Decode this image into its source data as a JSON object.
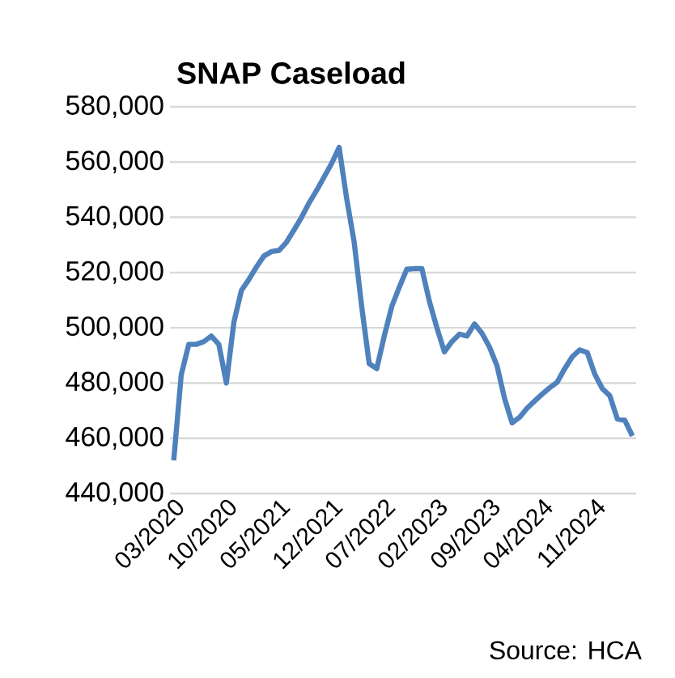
{
  "chart_data": {
    "type": "line",
    "title": "SNAP Caseload",
    "annotations": [
      "Source: HCA"
    ],
    "categories": [
      "03/2020",
      null,
      null,
      null,
      null,
      null,
      null,
      "10/2020",
      null,
      null,
      null,
      null,
      null,
      null,
      "05/2021",
      null,
      null,
      null,
      null,
      null,
      null,
      "12/2021",
      null,
      null,
      null,
      null,
      null,
      null,
      "07/2022",
      null,
      null,
      null,
      null,
      null,
      null,
      "02/2023",
      null,
      null,
      null,
      null,
      null,
      null,
      "09/2023",
      null,
      null,
      null,
      null,
      null,
      null,
      "04/2024",
      null,
      null,
      null,
      null,
      null,
      null,
      "11/2024",
      null,
      null,
      null,
      null,
      null
    ],
    "series": [
      {
        "color": "#4f81bd",
        "values": [
          452000,
          483000,
          494000,
          494000,
          495000,
          497000,
          494000,
          480000,
          502000,
          513500,
          517500,
          522000,
          526000,
          527600,
          528000,
          531000,
          535400,
          540000,
          545200,
          549700,
          554600,
          559500,
          565300,
          546800,
          531000,
          507700,
          487000,
          485200,
          497000,
          507700,
          514700,
          521200,
          521400,
          521400,
          509600,
          500000,
          491300,
          495000,
          497700,
          497000,
          501400,
          498000,
          493000,
          486200,
          474400,
          465600,
          467600,
          470900,
          473500,
          476000,
          478300,
          480300,
          485200,
          489500,
          492000,
          491000,
          483200,
          478000,
          475400,
          467000,
          466500,
          460800
        ]
      }
    ],
    "ylim": [
      440000,
      580000
    ],
    "yticks": [
      {
        "value": 440000,
        "label": "440,000"
      },
      {
        "value": 460000,
        "label": "460,000"
      },
      {
        "value": 480000,
        "label": "480,000"
      },
      {
        "value": 500000,
        "label": "500,000"
      },
      {
        "value": 520000,
        "label": "520,000"
      },
      {
        "value": 540000,
        "label": "540,000"
      },
      {
        "value": 560000,
        "label": "560,000"
      },
      {
        "value": 580000,
        "label": "580,000"
      }
    ],
    "grid": "y",
    "marker": "none",
    "line_style": "solid"
  }
}
